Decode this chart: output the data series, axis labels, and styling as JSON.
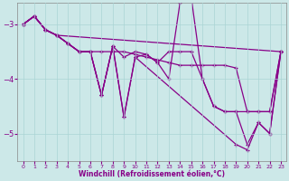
{
  "background_color": "#cce8e8",
  "grid_color": "#aad4d4",
  "line_color": "#880088",
  "marker": "+",
  "xlabel": "Windchill (Refroidissement éolien,°C)",
  "xlabel_color": "#880088",
  "tick_color": "#880088",
  "xlim": [
    -0.5,
    23.5
  ],
  "ylim": [
    -5.5,
    -2.6
  ],
  "yticks": [
    -5,
    -4,
    -3
  ],
  "xticks": [
    0,
    1,
    2,
    3,
    4,
    5,
    6,
    7,
    8,
    9,
    10,
    11,
    12,
    13,
    14,
    15,
    16,
    17,
    18,
    19,
    20,
    21,
    22,
    23
  ],
  "curves": [
    {
      "x": [
        0,
        1,
        2,
        3,
        23
      ],
      "y": [
        -3.0,
        -2.85,
        -3.1,
        -3.2,
        -3.5
      ]
    },
    {
      "x": [
        0,
        1,
        2,
        3,
        4,
        5,
        6,
        7,
        8,
        9,
        10,
        11,
        12,
        13,
        14,
        15,
        16,
        17,
        18,
        19,
        20,
        21,
        22,
        23
      ],
      "y": [
        -3.0,
        -2.85,
        -3.1,
        -3.2,
        -3.35,
        -3.5,
        -3.5,
        -3.5,
        -3.5,
        -3.5,
        -3.55,
        -3.6,
        -3.65,
        -3.7,
        -3.75,
        -3.75,
        -3.75,
        -3.75,
        -3.75,
        -3.8,
        -4.6,
        -4.6,
        -4.6,
        -3.5
      ]
    },
    {
      "x": [
        0,
        1,
        2,
        3,
        4,
        5,
        6,
        7,
        8,
        9,
        10,
        11,
        12,
        13,
        14,
        15,
        16,
        17,
        18,
        19,
        20,
        21,
        22,
        23
      ],
      "y": [
        -3.0,
        -2.85,
        -3.1,
        -3.2,
        -3.35,
        -3.5,
        -3.5,
        -4.3,
        -3.4,
        -3.6,
        -3.5,
        -3.55,
        -3.7,
        -3.5,
        -3.5,
        -3.5,
        -4.0,
        -4.5,
        -4.6,
        -4.6,
        -4.6,
        -4.6,
        -4.6,
        -3.5
      ]
    },
    {
      "x": [
        0,
        1,
        2,
        3,
        4,
        5,
        6,
        7,
        8,
        9,
        10,
        11,
        12,
        13,
        14,
        15,
        16,
        17,
        18,
        19,
        20,
        21,
        22,
        23
      ],
      "y": [
        -3.0,
        -2.85,
        -3.1,
        -3.2,
        -3.35,
        -3.5,
        -3.5,
        -4.3,
        -3.4,
        -4.7,
        -3.6,
        -3.55,
        -3.7,
        -4.0,
        -2.6,
        -2.5,
        -4.0,
        -4.5,
        -4.6,
        -4.6,
        -5.2,
        -4.8,
        -5.0,
        -3.5
      ]
    },
    {
      "x": [
        0,
        1,
        2,
        3,
        4,
        5,
        6,
        7,
        8,
        9,
        10,
        19,
        20,
        21,
        22,
        23
      ],
      "y": [
        -3.0,
        -2.85,
        -3.1,
        -3.2,
        -3.35,
        -3.5,
        -3.5,
        -4.3,
        -3.4,
        -4.7,
        -3.6,
        -5.2,
        -5.3,
        -4.8,
        -5.0,
        -3.5
      ]
    }
  ]
}
